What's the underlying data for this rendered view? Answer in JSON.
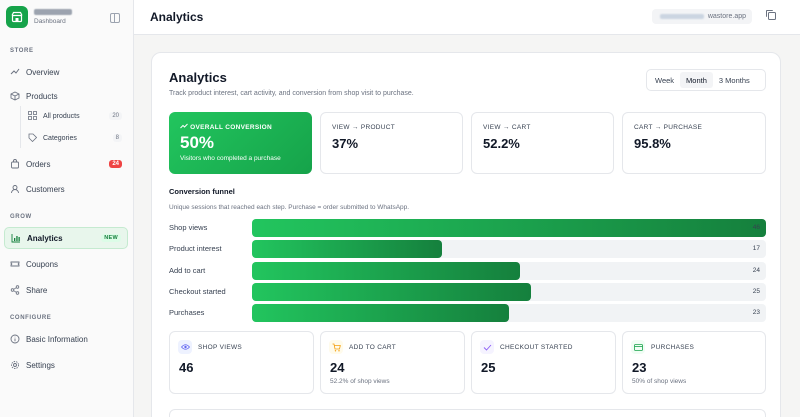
{
  "sidebar": {
    "brand_sub": "Dashboard",
    "store_label": "STORE",
    "grow_label": "GROW",
    "configure_label": "CONFIGURE",
    "items": {
      "overview": "Overview",
      "products": "Products",
      "all_products": "All products",
      "all_products_count": "20",
      "categories": "Categories",
      "categories_count": "8",
      "orders": "Orders",
      "orders_badge": "24",
      "customers": "Customers",
      "analytics": "Analytics",
      "analytics_badge": "NEW",
      "coupons": "Coupons",
      "share": "Share",
      "basic_info": "Basic Information",
      "settings": "Settings"
    }
  },
  "topbar": {
    "title": "Analytics",
    "domain_suffix": "wastore.app"
  },
  "header": {
    "title": "Analytics",
    "subtitle": "Track product interest, cart activity, and conversion from shop visit to purchase.",
    "ranges": [
      "Week",
      "Month",
      "3 Months"
    ],
    "selected_range": "Month"
  },
  "kpis": {
    "overall": {
      "label": "OVERALL CONVERSION",
      "value": "50%",
      "desc": "Visitors who completed a purchase"
    },
    "view_product": {
      "label": "VIEW → PRODUCT",
      "value": "37%"
    },
    "view_cart": {
      "label": "VIEW → CART",
      "value": "52.2%"
    },
    "cart_purchase": {
      "label": "CART → PURCHASE",
      "value": "95.8%"
    }
  },
  "funnel": {
    "title": "Conversion funnel",
    "subtitle": "Unique sessions that reached each step. Purchase = order submitted to WhatsApp.",
    "max": 46,
    "steps": [
      {
        "label": "Shop views",
        "value": 46
      },
      {
        "label": "Product interest",
        "value": 17
      },
      {
        "label": "Add to cart",
        "value": 24
      },
      {
        "label": "Checkout started",
        "value": 25
      },
      {
        "label": "Purchases",
        "value": 23
      }
    ]
  },
  "stats": [
    {
      "label": "SHOP VIEWS",
      "value": "46",
      "sub": "",
      "icon": "eye-icon",
      "color": "#6366f1"
    },
    {
      "label": "ADD TO CART",
      "value": "24",
      "sub": "52.2% of shop views",
      "icon": "cart-icon",
      "color": "#f59e0b"
    },
    {
      "label": "CHECKOUT STARTED",
      "value": "25",
      "sub": "",
      "icon": "checkout-icon",
      "color": "#8b5cf6"
    },
    {
      "label": "PURCHASES",
      "value": "23",
      "sub": "50% of shop views",
      "icon": "card-icon",
      "color": "#16a34a"
    }
  ]
}
